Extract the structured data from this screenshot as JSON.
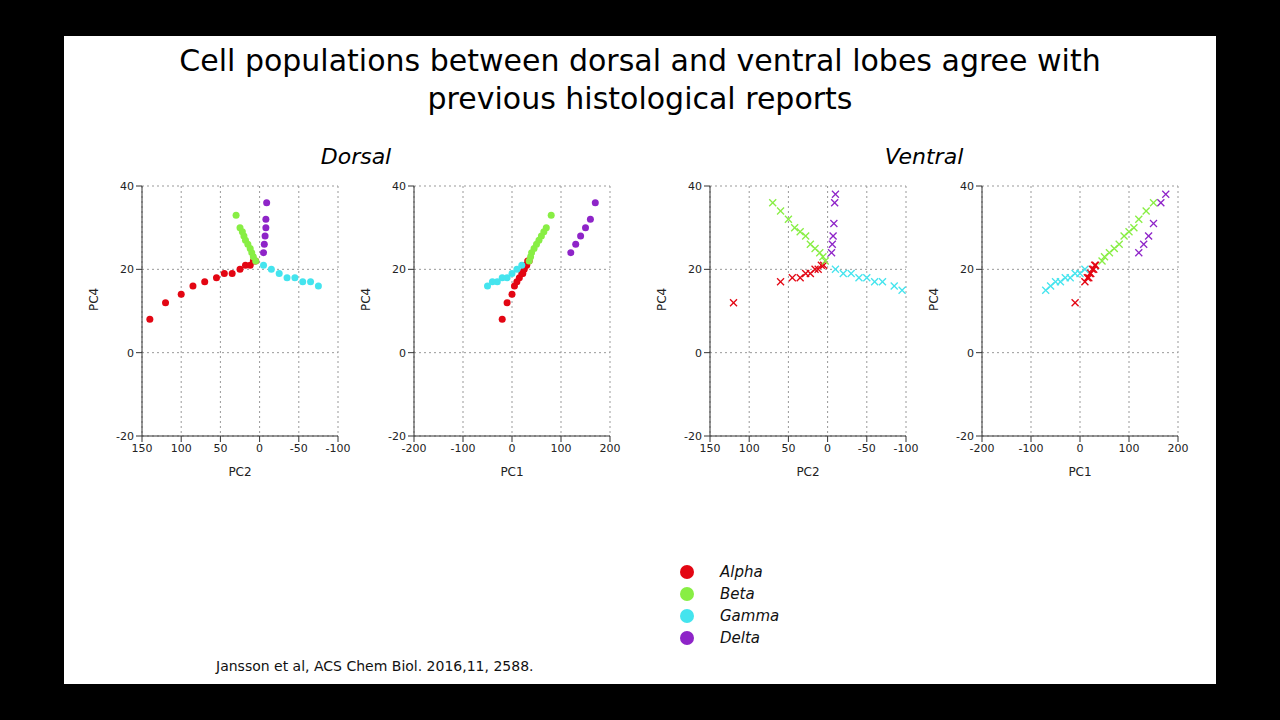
{
  "slide": {
    "title": "Cell populations between dorsal and ventral lobes agree with previous histological reports",
    "citation": "Jansson et al, ACS Chem Biol. 2016,11, 2588."
  },
  "chart_data": [
    {
      "type": "scatter",
      "title": "Dorsal",
      "x_label": "PC2",
      "y_label": "PC4",
      "z_label": "PC1",
      "xlim": [
        150,
        -100
      ],
      "xticks": [
        -100,
        -50,
        0,
        50,
        100,
        150
      ],
      "ylim": [
        -20,
        40
      ],
      "yticks": [
        -20,
        0,
        20,
        40
      ],
      "zlim": [
        -200,
        200
      ],
      "zticks": [
        -200,
        -100,
        0,
        100,
        200
      ],
      "grid": true,
      "series": [
        {
          "name": "Alpha",
          "color": "#e30613",
          "marker": "circle",
          "x": [
            140,
            120,
            100,
            85,
            70,
            55,
            45,
            35,
            25,
            18,
            12,
            8,
            5
          ],
          "y": [
            8,
            12,
            14,
            16,
            17,
            18,
            19,
            19,
            20,
            21,
            21,
            22,
            22
          ],
          "z": [
            -20,
            -10,
            0,
            5,
            10,
            15,
            20,
            22,
            25,
            28,
            30,
            32,
            35
          ]
        },
        {
          "name": "Beta",
          "color": "#88ee44",
          "marker": "circle",
          "x": [
            30,
            25,
            20,
            18,
            15,
            12,
            10,
            8,
            5,
            22
          ],
          "y": [
            33,
            30,
            28,
            27,
            26,
            25,
            24,
            23,
            22,
            29
          ],
          "z": [
            80,
            70,
            60,
            55,
            50,
            45,
            40,
            38,
            35,
            65
          ]
        },
        {
          "name": "Gamma",
          "color": "#44e4ee",
          "marker": "circle",
          "x": [
            -5,
            -15,
            -25,
            -35,
            -45,
            -55,
            -65,
            -75
          ],
          "y": [
            21,
            20,
            19,
            18,
            18,
            17,
            17,
            16
          ],
          "z": [
            20,
            10,
            0,
            -10,
            -20,
            -30,
            -40,
            -50
          ]
        },
        {
          "name": "Delta",
          "color": "#8e24c8",
          "marker": "circle",
          "x": [
            -5,
            -6,
            -7,
            -8,
            -8,
            -9
          ],
          "y": [
            24,
            26,
            28,
            30,
            32,
            36
          ],
          "z": [
            120,
            130,
            140,
            150,
            160,
            170
          ]
        }
      ]
    },
    {
      "type": "scatter",
      "title": "Ventral",
      "x_label": "PC2",
      "y_label": "PC4",
      "z_label": "PC1",
      "xlim": [
        150,
        -100
      ],
      "xticks": [
        -100,
        -50,
        0,
        50,
        100,
        150
      ],
      "ylim": [
        -20,
        40
      ],
      "yticks": [
        -20,
        0,
        20,
        40
      ],
      "zlim": [
        -200,
        200
      ],
      "zticks": [
        -200,
        -100,
        0,
        100,
        200
      ],
      "grid": true,
      "legend": "bottom",
      "series": [
        {
          "name": "Alpha",
          "color": "#e30613",
          "marker": "x",
          "x": [
            120,
            60,
            45,
            35,
            28,
            22,
            16,
            12,
            8,
            5
          ],
          "y": [
            12,
            17,
            18,
            18,
            19,
            19,
            20,
            20,
            21,
            21
          ],
          "z": [
            -10,
            10,
            15,
            18,
            20,
            22,
            25,
            28,
            30,
            32
          ]
        },
        {
          "name": "Beta",
          "color": "#88ee44",
          "marker": "x",
          "x": [
            70,
            60,
            50,
            42,
            35,
            28,
            22,
            16,
            10,
            6,
            3
          ],
          "y": [
            36,
            34,
            32,
            30,
            29,
            28,
            26,
            25,
            24,
            23,
            22
          ],
          "z": [
            150,
            135,
            120,
            110,
            100,
            90,
            80,
            70,
            60,
            50,
            45
          ]
        },
        {
          "name": "Gamma",
          "color": "#44e4ee",
          "marker": "x",
          "x": [
            -10,
            -20,
            -30,
            -40,
            -50,
            -60,
            -70,
            -85,
            -95
          ],
          "y": [
            20,
            19,
            19,
            18,
            18,
            17,
            17,
            16,
            15
          ],
          "z": [
            10,
            0,
            -10,
            -20,
            -30,
            -40,
            -50,
            -60,
            -70
          ]
        },
        {
          "name": "Delta",
          "color": "#8e24c8",
          "marker": "x",
          "x": [
            -5,
            -6,
            -7,
            -8,
            -9,
            -10
          ],
          "y": [
            24,
            26,
            28,
            31,
            36,
            38
          ],
          "z": [
            120,
            130,
            140,
            150,
            165,
            175
          ]
        }
      ]
    }
  ]
}
